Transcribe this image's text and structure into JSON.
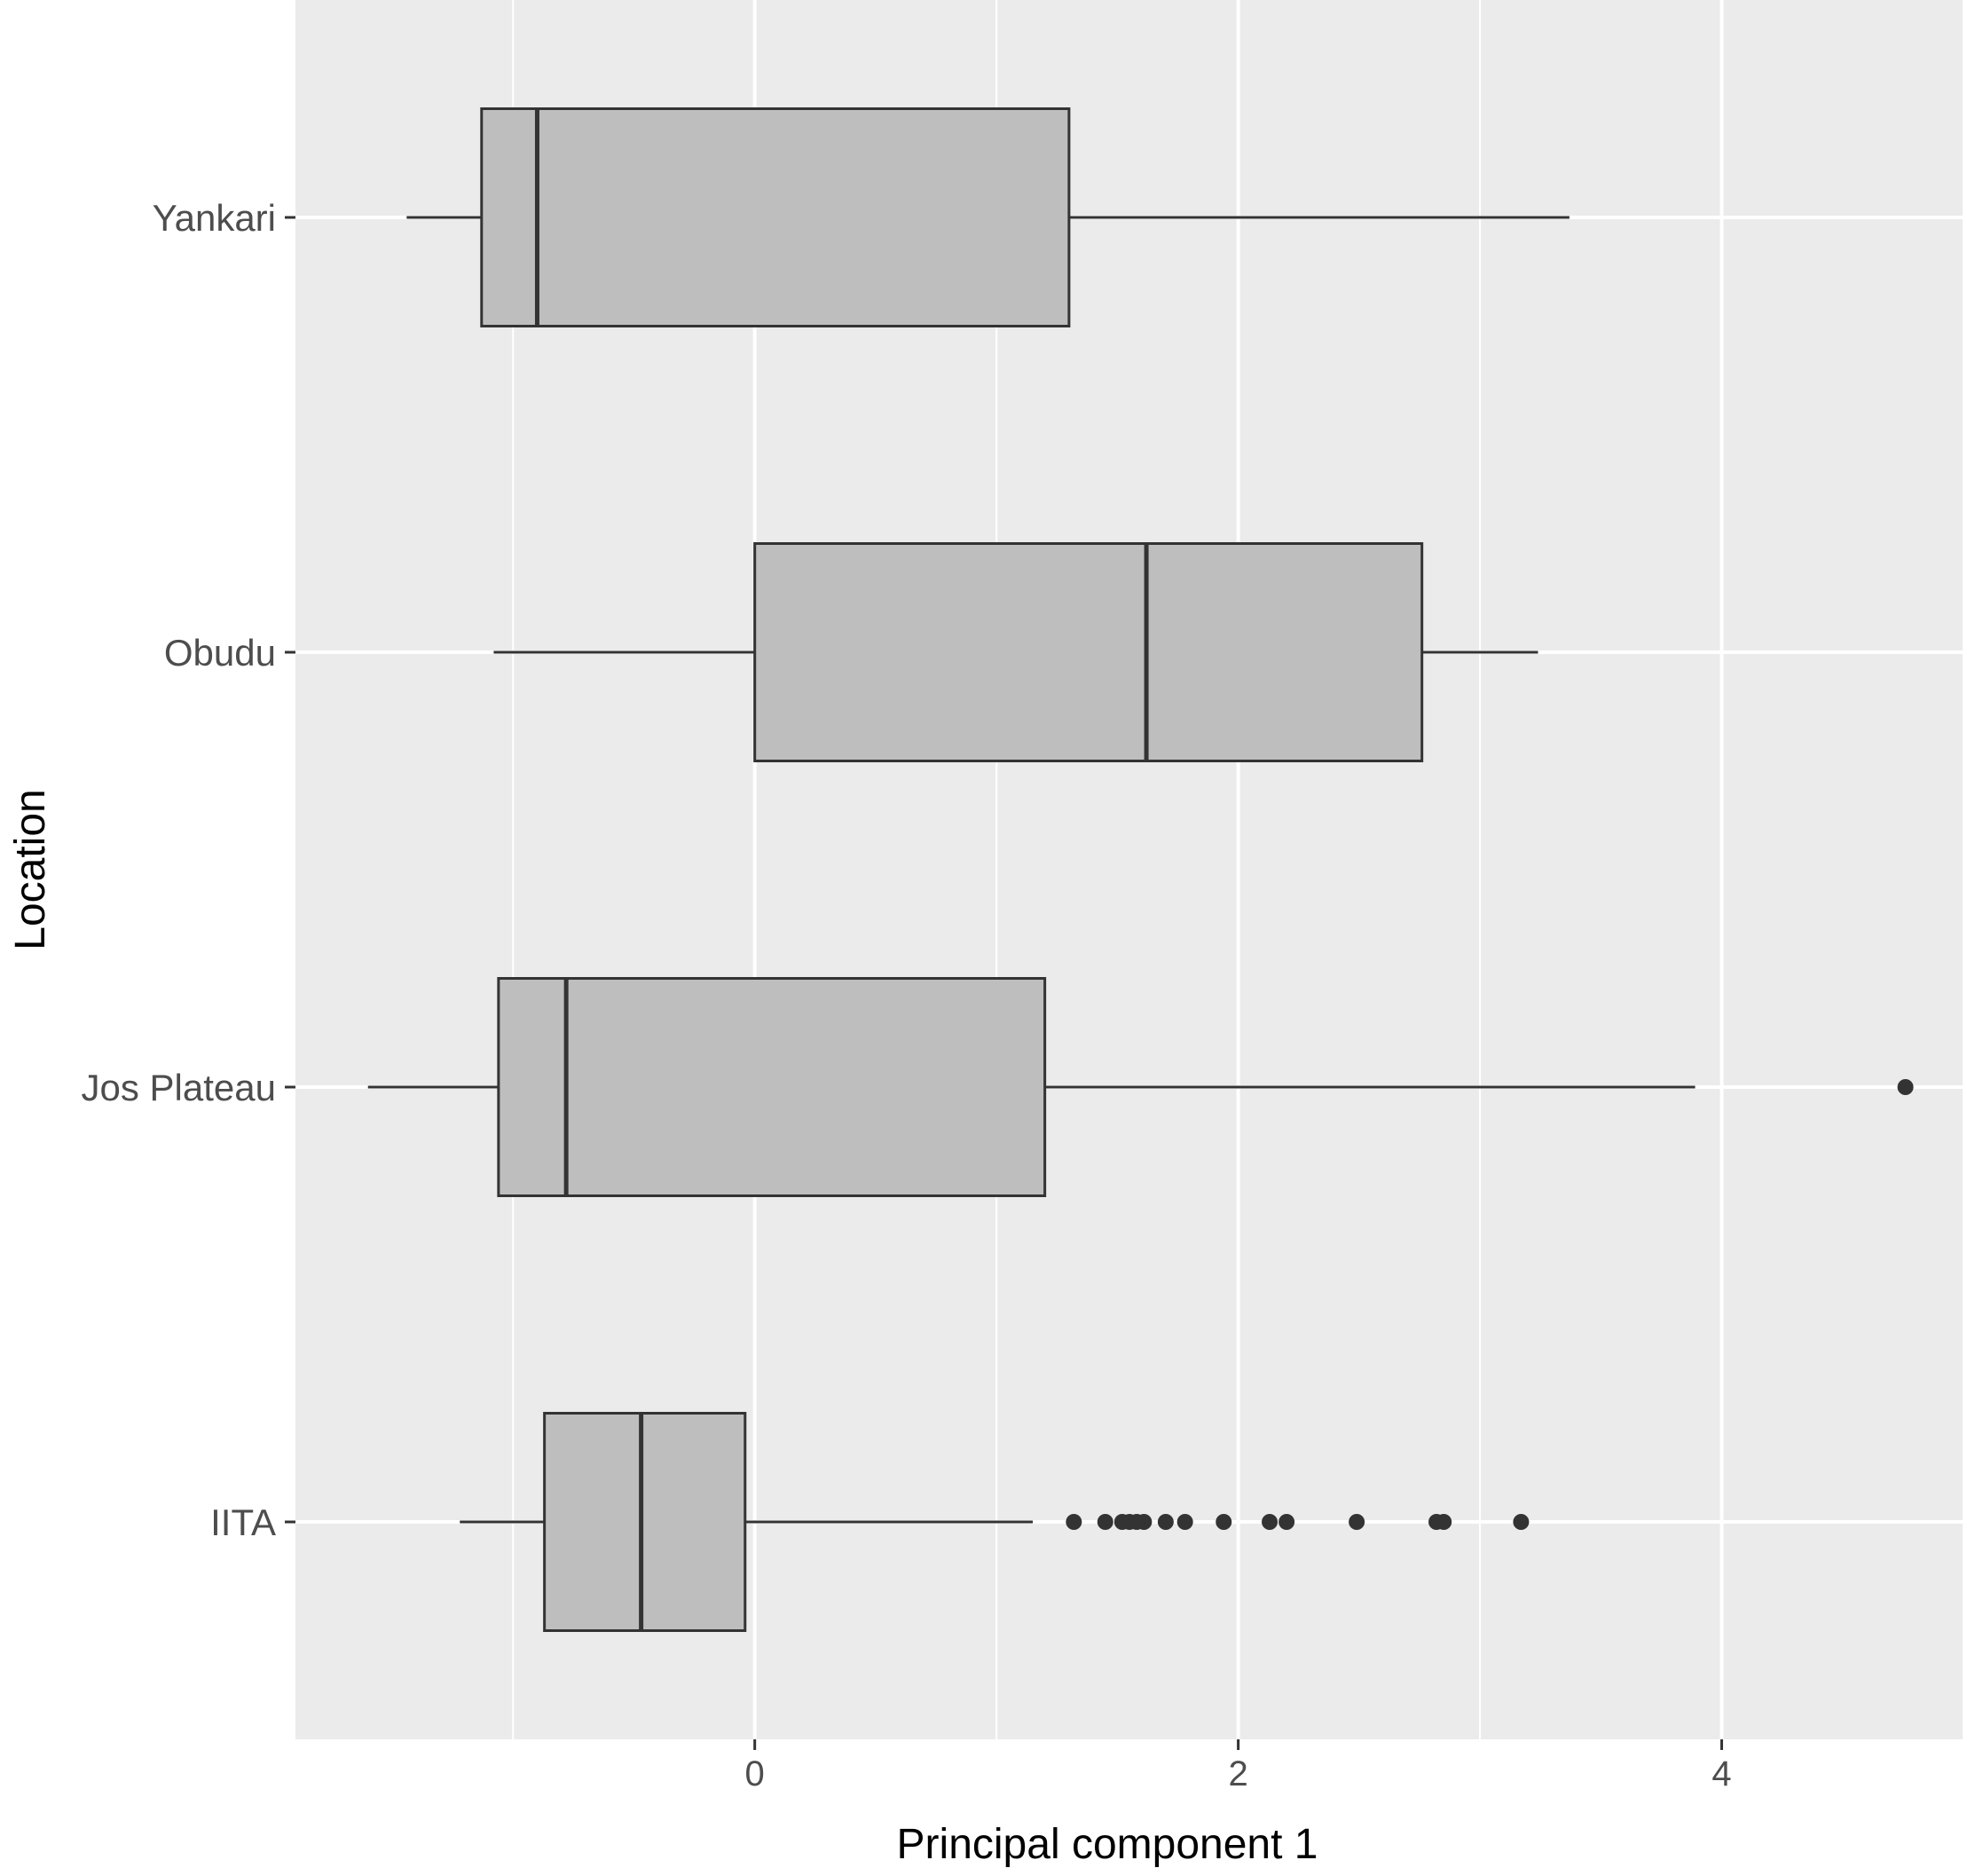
{
  "chart_data": {
    "type": "boxplot",
    "orientation": "horizontal",
    "title": "",
    "xlabel": "Principal component 1",
    "ylabel": "Location",
    "xlim": [
      -1.9,
      5.0
    ],
    "xticks": [
      0,
      2,
      4
    ],
    "xtick_labels": [
      "0",
      "2",
      "4"
    ],
    "categories": [
      "Yankari",
      "Obudu",
      "Jos Plateau",
      "IITA"
    ],
    "grid": true,
    "legend": "none",
    "colors": {
      "panel_background": "#ebebeb",
      "grid": "#ffffff",
      "box_fill": "#bebebe",
      "box_stroke": "#333333",
      "outlier": "#333333"
    },
    "boxes": [
      {
        "category": "Yankari",
        "whisker_low": -1.44,
        "q1": -1.13,
        "median": -0.9,
        "q3": 1.3,
        "whisker_high": 3.37,
        "outliers": []
      },
      {
        "category": "Obudu",
        "whisker_low": -1.08,
        "q1": 0.0,
        "median": 1.62,
        "q3": 2.76,
        "whisker_high": 3.24,
        "outliers": []
      },
      {
        "category": "Jos Plateau",
        "whisker_low": -1.6,
        "q1": -1.06,
        "median": -0.78,
        "q3": 1.2,
        "whisker_high": 3.89,
        "outliers": [
          4.76
        ]
      },
      {
        "category": "IITA",
        "whisker_low": -1.22,
        "q1": -0.87,
        "median": -0.47,
        "q3": -0.04,
        "whisker_high": 1.15,
        "outliers": [
          1.32,
          1.45,
          1.52,
          1.55,
          1.58,
          1.61,
          1.7,
          1.78,
          1.94,
          2.13,
          2.2,
          2.49,
          2.82,
          2.85,
          3.17
        ]
      }
    ]
  }
}
